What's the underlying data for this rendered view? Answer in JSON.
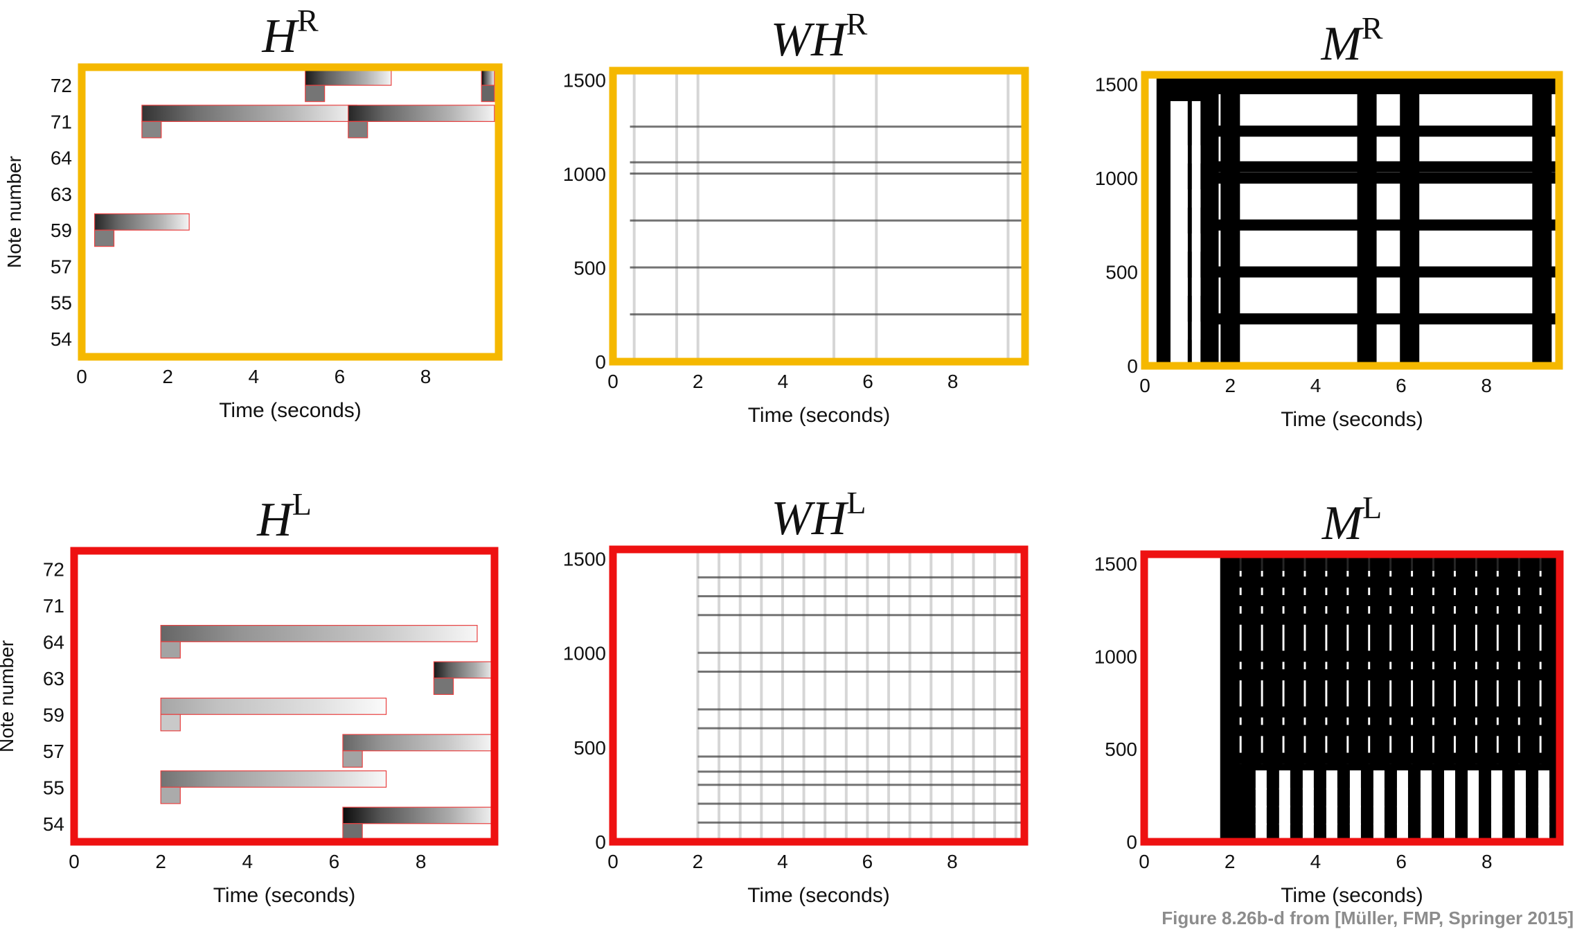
{
  "colors": {
    "right_hand": "#F5B800",
    "left_hand": "#EE1111",
    "note_box": "#E84040"
  },
  "caption": "Figure 8.26b-d from [Müller, FMP, Springer 2015]",
  "chart_data": [
    {
      "type": "heatmap",
      "title_main": "H",
      "title_sup": "R",
      "xlabel": "Time (seconds)",
      "ylabel": "Note number",
      "xlim": [
        0,
        9.7
      ],
      "xticks": [
        "0",
        "2",
        "4",
        "6",
        "8"
      ],
      "yticks": [
        "54",
        "55",
        "57",
        "59",
        "63",
        "64",
        "71",
        "72"
      ],
      "frame_color": "right_hand",
      "notes": [
        {
          "pitch": "72",
          "start": 5.2,
          "end": 7.2,
          "intensity": 0.9
        },
        {
          "pitch": "72",
          "start": 9.3,
          "end": 9.6,
          "intensity": 1.0
        },
        {
          "pitch": "71",
          "start": 1.4,
          "end": 6.4,
          "intensity": 0.8
        },
        {
          "pitch": "71",
          "start": 6.2,
          "end": 9.6,
          "intensity": 0.85
        },
        {
          "pitch": "59",
          "start": 0.3,
          "end": 2.5,
          "intensity": 0.85
        }
      ]
    },
    {
      "type": "heatmap",
      "title_main": "WH",
      "title_sup": "R",
      "xlabel": "Time (seconds)",
      "ylabel": "",
      "xlim": [
        0,
        9.7
      ],
      "ylim": [
        0,
        1550
      ],
      "xticks": [
        "0",
        "2",
        "4",
        "6",
        "8"
      ],
      "yticks": [
        "0",
        "500",
        "1000",
        "1500"
      ],
      "frame_color": "right_hand"
    },
    {
      "type": "heatmap",
      "title_main": "M",
      "title_sup": "R",
      "xlabel": "Time (seconds)",
      "ylabel": "",
      "xlim": [
        0,
        9.7
      ],
      "ylim": [
        0,
        1550
      ],
      "xticks": [
        "0",
        "2",
        "4",
        "6",
        "8"
      ],
      "yticks": [
        "0",
        "500",
        "1000",
        "1500"
      ],
      "frame_color": "right_hand"
    },
    {
      "type": "heatmap",
      "title_main": "H",
      "title_sup": "L",
      "xlabel": "Time (seconds)",
      "ylabel": "Note number",
      "xlim": [
        0,
        9.7
      ],
      "xticks": [
        "0",
        "2",
        "4",
        "6",
        "8"
      ],
      "yticks": [
        "54",
        "55",
        "57",
        "59",
        "63",
        "64",
        "71",
        "72"
      ],
      "frame_color": "left_hand",
      "notes": [
        {
          "pitch": "64",
          "start": 2.0,
          "end": 9.3,
          "intensity": 0.6
        },
        {
          "pitch": "63",
          "start": 8.3,
          "end": 9.7,
          "intensity": 0.9
        },
        {
          "pitch": "59",
          "start": 2.0,
          "end": 7.2,
          "intensity": 0.35
        },
        {
          "pitch": "57",
          "start": 6.2,
          "end": 9.7,
          "intensity": 0.6
        },
        {
          "pitch": "55",
          "start": 2.0,
          "end": 7.2,
          "intensity": 0.55
        },
        {
          "pitch": "54",
          "start": 6.2,
          "end": 9.7,
          "intensity": 0.95
        }
      ]
    },
    {
      "type": "heatmap",
      "title_main": "WH",
      "title_sup": "L",
      "xlabel": "Time (seconds)",
      "ylabel": "",
      "xlim": [
        0,
        9.7
      ],
      "ylim": [
        0,
        1550
      ],
      "xticks": [
        "0",
        "2",
        "4",
        "6",
        "8"
      ],
      "yticks": [
        "0",
        "500",
        "1000",
        "1500"
      ],
      "frame_color": "left_hand"
    },
    {
      "type": "heatmap",
      "title_main": "M",
      "title_sup": "L",
      "xlabel": "Time (seconds)",
      "ylabel": "",
      "xlim": [
        0,
        9.7
      ],
      "ylim": [
        0,
        1550
      ],
      "xticks": [
        "0",
        "2",
        "4",
        "6",
        "8"
      ],
      "yticks": [
        "0",
        "500",
        "1000",
        "1500"
      ],
      "frame_color": "left_hand"
    }
  ]
}
